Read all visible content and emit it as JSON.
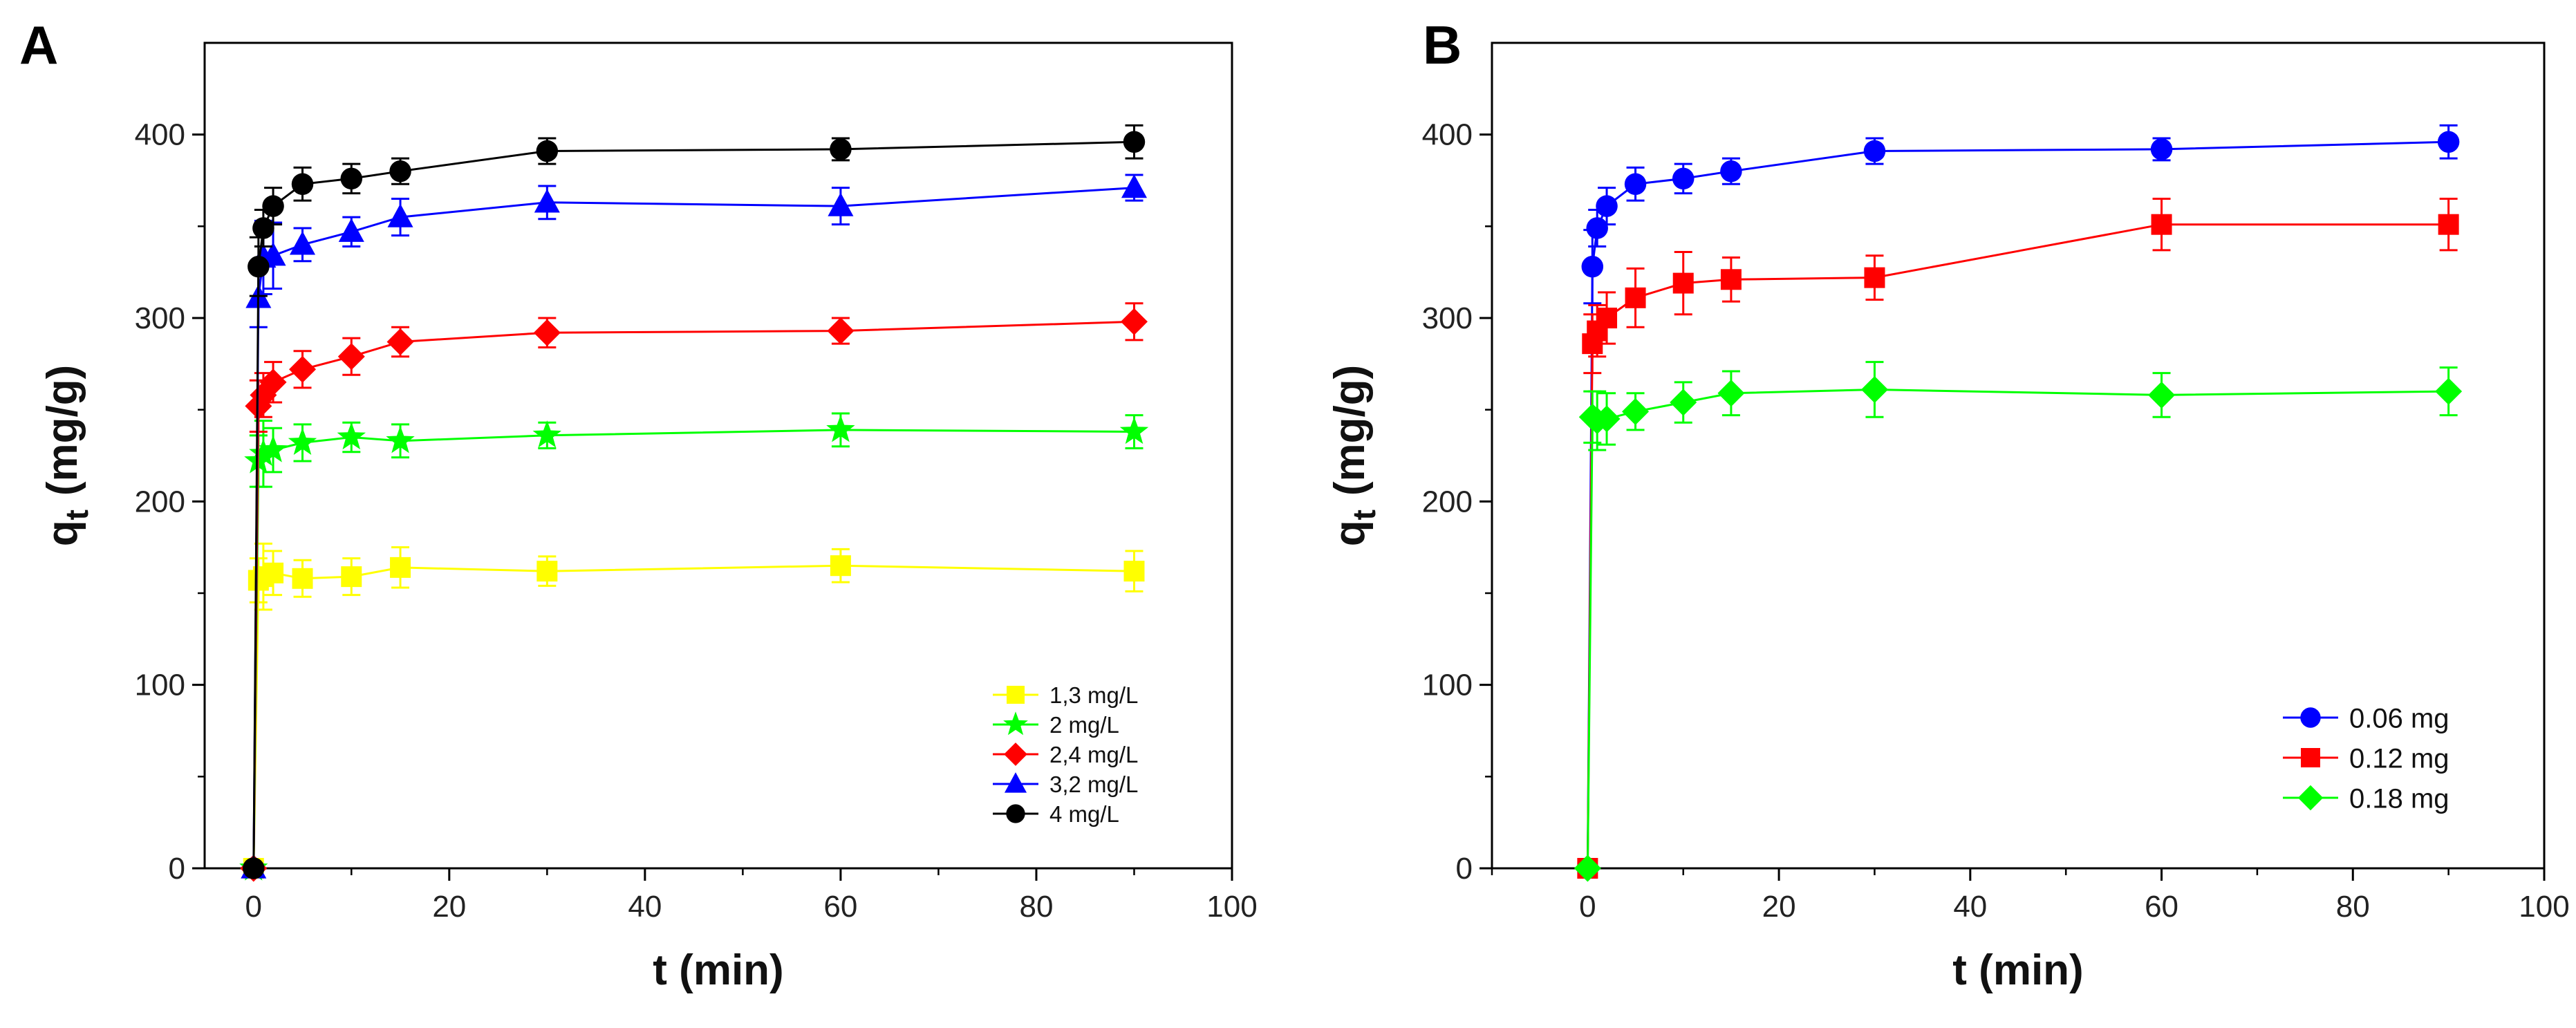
{
  "chart_data": [
    {
      "type": "line",
      "panel_label": "A",
      "title": "",
      "xlabel": "t (min)",
      "ylabel_main": "q",
      "ylabel_sub": "t",
      "ylabel_units": "(mg/g)",
      "xlim": [
        -5,
        100
      ],
      "ylim": [
        0,
        450
      ],
      "xticks": [
        0,
        20,
        40,
        60,
        80,
        100
      ],
      "yticks": [
        0,
        100,
        200,
        300,
        400
      ],
      "legend_position": "bottom-right",
      "grid": false,
      "x": [
        0,
        0.5,
        1,
        2,
        5,
        10,
        15,
        30,
        60,
        90
      ],
      "series": [
        {
          "name": "1,3 mg/L",
          "color": "#ffff00",
          "marker": "square",
          "values": [
            0,
            157,
            159,
            161,
            158,
            159,
            164,
            162,
            165,
            162
          ],
          "errors": [
            0,
            12,
            18,
            12,
            10,
            10,
            11,
            8,
            9,
            11
          ]
        },
        {
          "name": "2 mg/L",
          "color": "#00ff00",
          "marker": "star",
          "values": [
            0,
            222,
            226,
            228,
            232,
            235,
            233,
            236,
            239,
            238
          ],
          "errors": [
            0,
            14,
            18,
            12,
            10,
            8,
            9,
            7,
            9,
            9
          ]
        },
        {
          "name": "2,4 mg/L",
          "color": "#ff0000",
          "marker": "diamond",
          "values": [
            0,
            252,
            258,
            265,
            272,
            279,
            287,
            292,
            293,
            298
          ],
          "errors": [
            0,
            14,
            12,
            11,
            10,
            10,
            8,
            8,
            7,
            10
          ]
        },
        {
          "name": "3,2 mg/L",
          "color": "#0000ff",
          "marker": "triangle",
          "values": [
            0,
            311,
            333,
            334,
            340,
            347,
            355,
            363,
            361,
            371
          ],
          "errors": [
            0,
            16,
            20,
            18,
            9,
            8,
            10,
            9,
            10,
            7
          ]
        },
        {
          "name": "4 mg/L",
          "color": "#000000",
          "marker": "circle",
          "values": [
            0,
            328,
            349,
            361,
            373,
            376,
            380,
            391,
            392,
            396
          ],
          "errors": [
            0,
            16,
            10,
            10,
            9,
            8,
            7,
            7,
            6,
            9
          ]
        }
      ]
    },
    {
      "type": "line",
      "panel_label": "B",
      "title": "",
      "xlabel": "t (min)",
      "ylabel_main": "q",
      "ylabel_sub": "t",
      "ylabel_units": "(mg/g)",
      "xlim": [
        -10,
        100
      ],
      "ylim": [
        0,
        450
      ],
      "xticks": [
        0,
        20,
        40,
        60,
        80,
        100
      ],
      "yticks": [
        0,
        100,
        200,
        300,
        400
      ],
      "legend_position": "bottom-right",
      "grid": false,
      "x": [
        0,
        0.5,
        1,
        2,
        5,
        10,
        15,
        30,
        60,
        90
      ],
      "series": [
        {
          "name": "0.06 mg",
          "color": "#0000ff",
          "marker": "circle",
          "values": [
            0,
            328,
            349,
            361,
            373,
            376,
            380,
            391,
            392,
            396
          ],
          "errors": [
            0,
            20,
            10,
            10,
            9,
            8,
            7,
            7,
            6,
            9
          ]
        },
        {
          "name": "0.12 mg",
          "color": "#ff0000",
          "marker": "square",
          "values": [
            0,
            286,
            293,
            300,
            311,
            319,
            321,
            322,
            351,
            351
          ],
          "errors": [
            0,
            16,
            14,
            14,
            16,
            17,
            12,
            12,
            14,
            14
          ]
        },
        {
          "name": "0.18 mg",
          "color": "#00ff00",
          "marker": "diamond",
          "values": [
            0,
            246,
            244,
            245,
            249,
            254,
            259,
            261,
            258,
            260
          ],
          "errors": [
            0,
            14,
            16,
            14,
            10,
            11,
            12,
            15,
            12,
            13
          ]
        }
      ]
    }
  ]
}
